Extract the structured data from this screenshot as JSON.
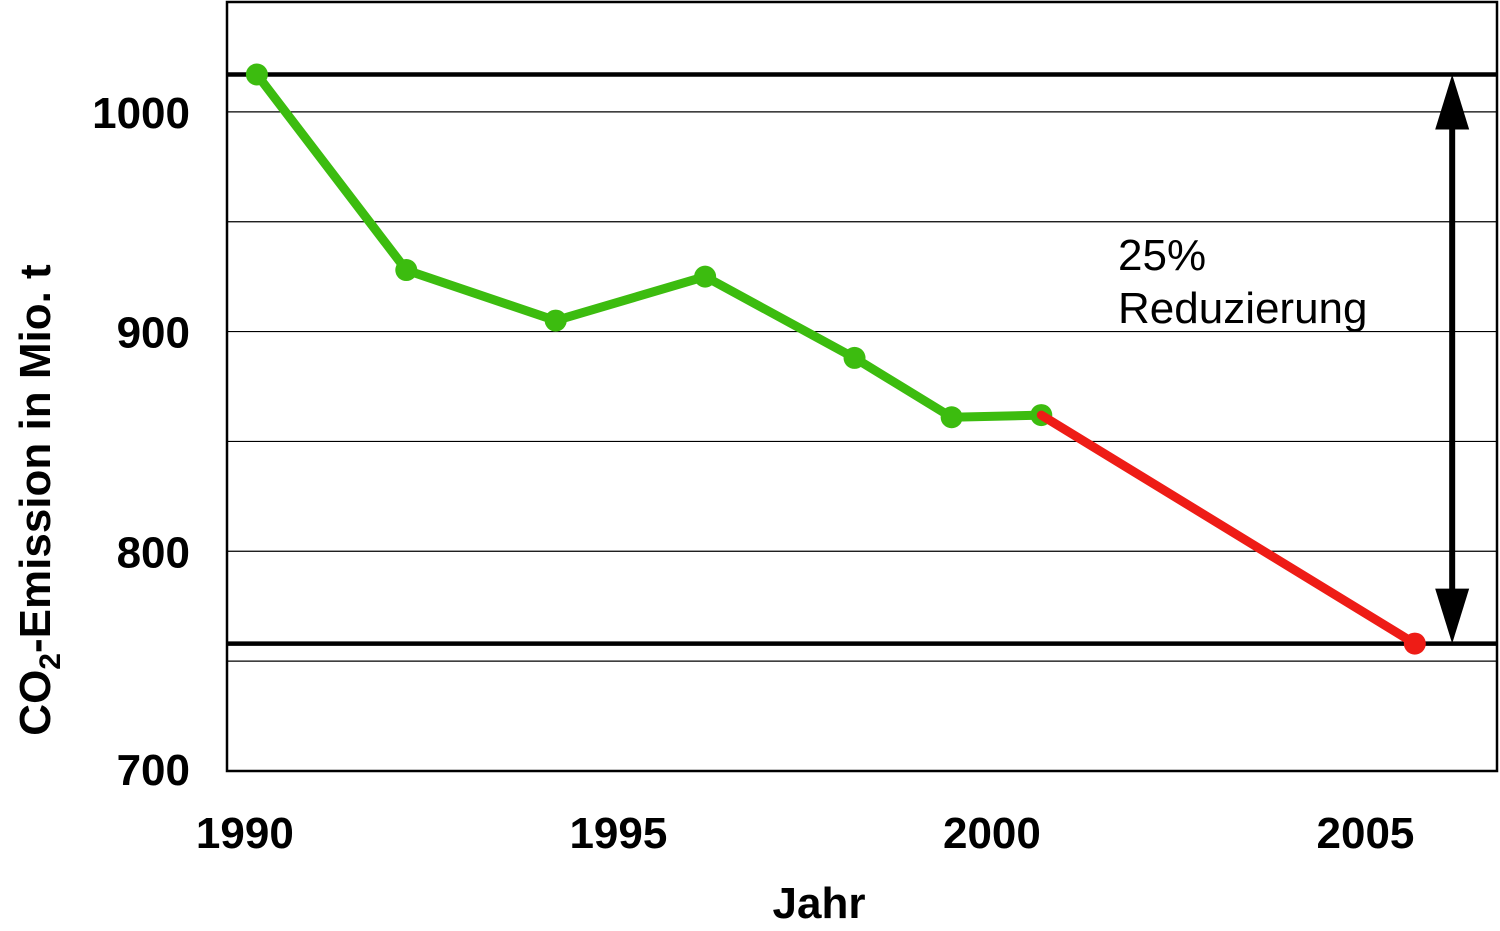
{
  "chart_data": {
    "type": "line",
    "xlabel": "Jahr",
    "ylabel": {
      "prefix": "CO",
      "subscript": "2",
      "suffix": "-Emission in Mio. t"
    },
    "xlim": [
      1989.6,
      2006.6
    ],
    "ylim": [
      700,
      1050
    ],
    "x_ticks": [
      {
        "value": 1990,
        "label": "1990"
      },
      {
        "value": 1995,
        "label": "1995"
      },
      {
        "value": 2000,
        "label": "2000"
      },
      {
        "value": 2005,
        "label": "2005"
      }
    ],
    "y_ticks": [
      {
        "value": 700,
        "label": "700"
      },
      {
        "value": 800,
        "label": "800"
      },
      {
        "value": 900,
        "label": "900"
      },
      {
        "value": 1000,
        "label": "1000"
      }
    ],
    "minor_gridlines_y": [
      750,
      850,
      950
    ],
    "series": [
      {
        "color": "#3cbc0f",
        "marker": "circle",
        "points": [
          {
            "x": 1990,
            "y": 1017
          },
          {
            "x": 1992,
            "y": 928
          },
          {
            "x": 1994,
            "y": 905
          },
          {
            "x": 1996,
            "y": 925
          },
          {
            "x": 1998,
            "y": 888
          },
          {
            "x": 1999.3,
            "y": 861
          },
          {
            "x": 2000.5,
            "y": 862
          }
        ]
      },
      {
        "color": "#ee1c16",
        "marker": "circle",
        "markers_on": [
          1
        ],
        "points": [
          {
            "x": 2000.5,
            "y": 862
          },
          {
            "x": 2005.5,
            "y": 758
          }
        ]
      }
    ],
    "reference_lines": [
      {
        "y": 1017
      },
      {
        "y": 758
      }
    ],
    "annotation": {
      "text_line1": "25%",
      "text_line2": "Reduzierung",
      "arrow": "double-headed, vertical, from y 1017 to y 758 at x 2006.0"
    },
    "grid": true,
    "legend": "none"
  }
}
